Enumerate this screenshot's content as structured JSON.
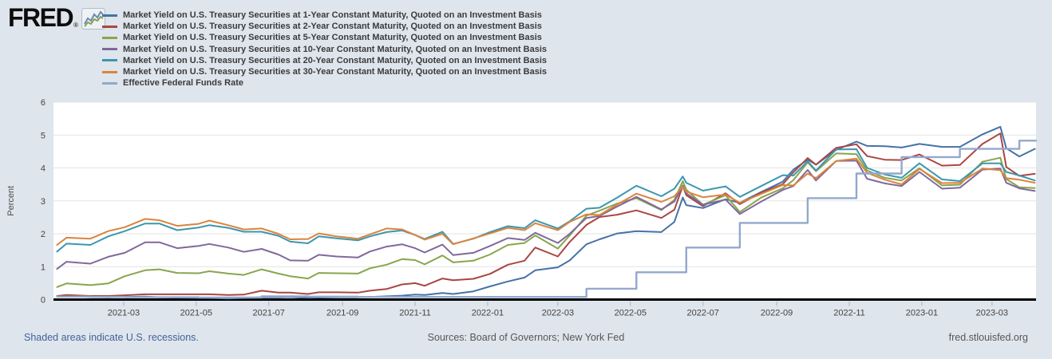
{
  "header": {
    "logo_text": "FRED",
    "registered_mark": "®"
  },
  "footer": {
    "notes": "Shaded areas indicate U.S. recessions.",
    "sources": "Sources: Board of Governors; New York Fed",
    "site": "fred.stlouisfed.org"
  },
  "chart_data": {
    "type": "line",
    "title": "",
    "xlabel": "",
    "ylabel": "Percent",
    "ylim": [
      0,
      6
    ],
    "yticks": [
      0,
      1,
      2,
      3,
      4,
      5,
      6
    ],
    "grid": "horizontal",
    "legend_position": "top-left",
    "x_range": [
      "2021-01-01",
      "2023-04-07"
    ],
    "xticks": [
      "2021-03",
      "2021-05",
      "2021-07",
      "2021-09",
      "2021-11",
      "2022-01",
      "2022-03",
      "2022-05",
      "2022-07",
      "2022-09",
      "2022-11",
      "2023-01",
      "2023-03"
    ],
    "x": [
      "2021-01-04",
      "2021-01-12",
      "2021-02-01",
      "2021-02-16",
      "2021-03-02",
      "2021-03-19",
      "2021-03-31",
      "2021-04-15",
      "2021-05-03",
      "2021-05-12",
      "2021-05-28",
      "2021-06-10",
      "2021-06-25",
      "2021-07-09",
      "2021-07-19",
      "2021-08-03",
      "2021-08-12",
      "2021-08-27",
      "2021-09-14",
      "2021-09-24",
      "2021-10-08",
      "2021-10-21",
      "2021-11-01",
      "2021-11-09",
      "2021-11-24",
      "2021-12-03",
      "2021-12-20",
      "2022-01-03",
      "2022-01-18",
      "2022-02-01",
      "2022-02-10",
      "2022-03-01",
      "2022-03-11",
      "2022-03-25",
      "2022-04-05",
      "2022-04-20",
      "2022-05-06",
      "2022-05-27",
      "2022-06-07",
      "2022-06-14",
      "2022-06-17",
      "2022-07-01",
      "2022-07-20",
      "2022-08-01",
      "2022-08-19",
      "2022-09-06",
      "2022-09-15",
      "2022-09-27",
      "2022-10-04",
      "2022-10-21",
      "2022-11-07",
      "2022-11-16",
      "2022-12-01",
      "2022-12-15",
      "2022-12-30",
      "2023-01-18",
      "2023-02-02",
      "2023-02-21",
      "2023-03-08",
      "2023-03-13",
      "2023-03-24",
      "2023-04-06"
    ],
    "series": [
      {
        "name": "Market Yield on U.S. Treasury Securities at 1-Year Constant Maturity, Quoted on an Investment Basis",
        "color": "#4572A7",
        "values": [
          0.1,
          0.1,
          0.08,
          0.07,
          0.08,
          0.09,
          0.07,
          0.06,
          0.05,
          0.05,
          0.03,
          0.05,
          0.07,
          0.07,
          0.08,
          0.05,
          0.06,
          0.07,
          0.07,
          0.08,
          0.1,
          0.12,
          0.15,
          0.14,
          0.2,
          0.17,
          0.25,
          0.4,
          0.55,
          0.67,
          0.89,
          0.98,
          1.19,
          1.68,
          1.83,
          2.01,
          2.08,
          2.05,
          2.36,
          3.1,
          2.87,
          2.78,
          3.05,
          2.94,
          3.27,
          3.58,
          3.95,
          4.25,
          4.1,
          4.55,
          4.8,
          4.67,
          4.66,
          4.62,
          4.73,
          4.64,
          4.64,
          5.02,
          5.25,
          4.6,
          4.35,
          4.58
        ]
      },
      {
        "name": "Market Yield on U.S. Treasury Securities at 2-Year Constant Maturity, Quoted on an Investment Basis",
        "color": "#AA4643",
        "values": [
          0.11,
          0.14,
          0.11,
          0.11,
          0.13,
          0.16,
          0.16,
          0.16,
          0.16,
          0.16,
          0.14,
          0.15,
          0.27,
          0.21,
          0.21,
          0.17,
          0.22,
          0.22,
          0.21,
          0.27,
          0.32,
          0.46,
          0.5,
          0.42,
          0.64,
          0.59,
          0.63,
          0.78,
          1.06,
          1.18,
          1.58,
          1.31,
          1.75,
          2.27,
          2.51,
          2.58,
          2.71,
          2.48,
          2.73,
          3.45,
          3.17,
          2.84,
          3.23,
          2.9,
          3.25,
          3.5,
          3.87,
          4.3,
          4.1,
          4.61,
          4.72,
          4.36,
          4.25,
          4.24,
          4.41,
          4.07,
          4.09,
          4.73,
          5.05,
          4.03,
          3.76,
          3.82
        ]
      },
      {
        "name": "Market Yield on U.S. Treasury Securities at 5-Year Constant Maturity, Quoted on an Investment Basis",
        "color": "#89A54E",
        "values": [
          0.38,
          0.49,
          0.44,
          0.49,
          0.71,
          0.89,
          0.92,
          0.81,
          0.8,
          0.86,
          0.79,
          0.75,
          0.92,
          0.79,
          0.71,
          0.64,
          0.81,
          0.8,
          0.79,
          0.95,
          1.06,
          1.23,
          1.2,
          1.07,
          1.34,
          1.13,
          1.18,
          1.37,
          1.66,
          1.72,
          1.95,
          1.55,
          1.95,
          2.55,
          2.7,
          2.92,
          3.08,
          2.72,
          3.03,
          3.6,
          3.34,
          2.88,
          3.17,
          2.66,
          3.1,
          3.38,
          3.63,
          4.17,
          3.9,
          4.44,
          4.42,
          3.92,
          3.7,
          3.62,
          3.99,
          3.47,
          3.49,
          4.19,
          4.31,
          3.66,
          3.41,
          3.39
        ]
      },
      {
        "name": "Market Yield on U.S. Treasury Securities at 10-Year Constant Maturity, Quoted on an Investment Basis",
        "color": "#80699B",
        "values": [
          0.93,
          1.15,
          1.09,
          1.3,
          1.42,
          1.74,
          1.74,
          1.56,
          1.63,
          1.69,
          1.58,
          1.45,
          1.54,
          1.37,
          1.19,
          1.18,
          1.36,
          1.31,
          1.28,
          1.46,
          1.61,
          1.68,
          1.56,
          1.43,
          1.67,
          1.35,
          1.42,
          1.63,
          1.87,
          1.81,
          2.03,
          1.72,
          2.0,
          2.48,
          2.54,
          2.83,
          3.12,
          2.74,
          2.98,
          3.47,
          3.23,
          2.88,
          3.04,
          2.6,
          2.98,
          3.33,
          3.45,
          3.94,
          3.62,
          4.21,
          4.22,
          3.67,
          3.53,
          3.45,
          3.88,
          3.37,
          3.4,
          3.95,
          3.98,
          3.55,
          3.38,
          3.3
        ]
      },
      {
        "name": "Market Yield on U.S. Treasury Securities at 20-Year Constant Maturity, Quoted on an Investment Basis",
        "color": "#3D96AE",
        "values": [
          1.46,
          1.7,
          1.66,
          1.92,
          2.08,
          2.31,
          2.31,
          2.11,
          2.19,
          2.26,
          2.18,
          2.06,
          2.06,
          1.94,
          1.76,
          1.71,
          1.92,
          1.86,
          1.8,
          1.92,
          2.05,
          2.1,
          1.96,
          1.84,
          2.06,
          1.69,
          1.85,
          2.05,
          2.23,
          2.17,
          2.41,
          2.16,
          2.38,
          2.76,
          2.79,
          3.1,
          3.46,
          3.14,
          3.37,
          3.74,
          3.55,
          3.31,
          3.44,
          3.12,
          3.45,
          3.78,
          3.77,
          4.2,
          3.92,
          4.56,
          4.57,
          4.0,
          3.8,
          3.7,
          4.14,
          3.65,
          3.6,
          4.14,
          4.14,
          3.88,
          3.77,
          3.62
        ]
      },
      {
        "name": "Market Yield on U.S. Treasury Securities at 30-Year Constant Maturity, Quoted on an Investment Basis",
        "color": "#DB843D",
        "values": [
          1.66,
          1.88,
          1.85,
          2.08,
          2.2,
          2.45,
          2.41,
          2.24,
          2.3,
          2.4,
          2.26,
          2.13,
          2.16,
          2.0,
          1.83,
          1.84,
          2.01,
          1.92,
          1.85,
          1.98,
          2.16,
          2.13,
          1.96,
          1.82,
          2.0,
          1.68,
          1.86,
          2.01,
          2.18,
          2.11,
          2.32,
          2.11,
          2.36,
          2.59,
          2.57,
          2.89,
          3.22,
          2.97,
          3.14,
          3.43,
          3.28,
          3.11,
          3.19,
          2.94,
          3.21,
          3.48,
          3.47,
          3.83,
          3.69,
          4.21,
          4.28,
          3.85,
          3.64,
          3.5,
          3.97,
          3.54,
          3.55,
          3.98,
          3.93,
          3.69,
          3.64,
          3.55
        ]
      },
      {
        "name": "Effective Federal Funds Rate",
        "color": "#92A8CD",
        "step": true,
        "values": [
          0.09,
          0.09,
          0.08,
          0.08,
          0.07,
          0.07,
          0.07,
          0.07,
          0.06,
          0.06,
          0.06,
          0.06,
          0.1,
          0.1,
          0.1,
          0.09,
          0.09,
          0.09,
          0.08,
          0.08,
          0.08,
          0.08,
          0.08,
          0.08,
          0.08,
          0.08,
          0.08,
          0.08,
          0.08,
          0.08,
          0.08,
          0.08,
          0.08,
          0.33,
          0.33,
          0.33,
          0.83,
          0.83,
          0.83,
          0.83,
          1.58,
          1.58,
          1.58,
          2.33,
          2.33,
          2.33,
          2.33,
          3.08,
          3.08,
          3.08,
          3.83,
          3.83,
          3.83,
          4.33,
          4.33,
          4.33,
          4.58,
          4.58,
          4.58,
          4.58,
          4.83,
          4.83
        ]
      }
    ]
  }
}
